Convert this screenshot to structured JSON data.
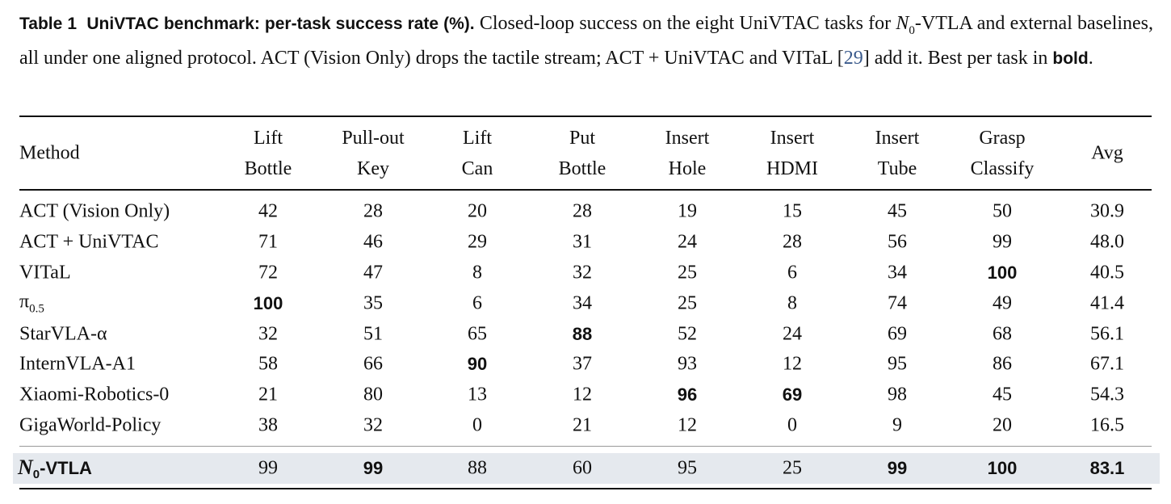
{
  "caption": {
    "table_label": "Table 1",
    "title": "UniVTAC benchmark: per-task success rate (%).",
    "text_part1": "Closed-loop success on the eight UniVTAC tasks for ",
    "model_symbol": "N",
    "model_subscript": "0",
    "text_part2": "-VTLA and external baselines, all under one aligned protocol. ACT (Vision Only) drops the tactile stream; ACT + UniVTAC and VITaL ",
    "ref_open": "[",
    "ref_number": "29",
    "ref_close": "]",
    "text_part3": " add it. Best per task in ",
    "bold_word": "bold",
    "text_end": "."
  },
  "table": {
    "method_header": "Method",
    "columns": [
      {
        "line1": "Lift",
        "line2": "Bottle"
      },
      {
        "line1": "Pull-out",
        "line2": "Key"
      },
      {
        "line1": "Lift",
        "line2": "Can"
      },
      {
        "line1": "Put",
        "line2": "Bottle"
      },
      {
        "line1": "Insert",
        "line2": "Hole"
      },
      {
        "line1": "Insert",
        "line2": "HDMI"
      },
      {
        "line1": "Insert",
        "line2": "Tube"
      },
      {
        "line1": "Grasp",
        "line2": "Classify"
      },
      {
        "line1": "Avg",
        "line2": ""
      }
    ],
    "rows": [
      {
        "method": "ACT (Vision Only)",
        "values": [
          "42",
          "28",
          "20",
          "28",
          "19",
          "15",
          "45",
          "50",
          "30.9"
        ],
        "best": []
      },
      {
        "method": "ACT + UniVTAC",
        "values": [
          "71",
          "46",
          "29",
          "31",
          "24",
          "28",
          "56",
          "99",
          "48.0"
        ],
        "best": []
      },
      {
        "method": "VITaL",
        "values": [
          "72",
          "47",
          "8",
          "32",
          "25",
          "6",
          "34",
          "100",
          "40.5"
        ],
        "best": [
          7
        ]
      },
      {
        "method": "π",
        "method_sub": "0.5",
        "values": [
          "100",
          "35",
          "6",
          "34",
          "25",
          "8",
          "74",
          "49",
          "41.4"
        ],
        "best": [
          0
        ]
      },
      {
        "method": "StarVLA-α",
        "values": [
          "32",
          "51",
          "65",
          "88",
          "52",
          "24",
          "69",
          "68",
          "56.1"
        ],
        "best": [
          3
        ]
      },
      {
        "method": "InternVLA-A1",
        "values": [
          "58",
          "66",
          "90",
          "37",
          "93",
          "12",
          "95",
          "86",
          "67.1"
        ],
        "best": [
          2
        ]
      },
      {
        "method": "Xiaomi-Robotics-0",
        "values": [
          "21",
          "80",
          "13",
          "12",
          "96",
          "69",
          "98",
          "45",
          "54.3"
        ],
        "best": [
          4,
          5
        ]
      },
      {
        "method": "GigaWorld-Policy",
        "values": [
          "38",
          "32",
          "0",
          "21",
          "12",
          "0",
          "9",
          "20",
          "16.5"
        ],
        "best": []
      }
    ],
    "ours": {
      "method_symbol": "N",
      "method_sub": "0",
      "method_suffix": "-VTLA",
      "values": [
        "99",
        "99",
        "88",
        "60",
        "95",
        "25",
        "99",
        "100",
        "83.1"
      ],
      "best": [
        1,
        6,
        7,
        8
      ]
    }
  }
}
